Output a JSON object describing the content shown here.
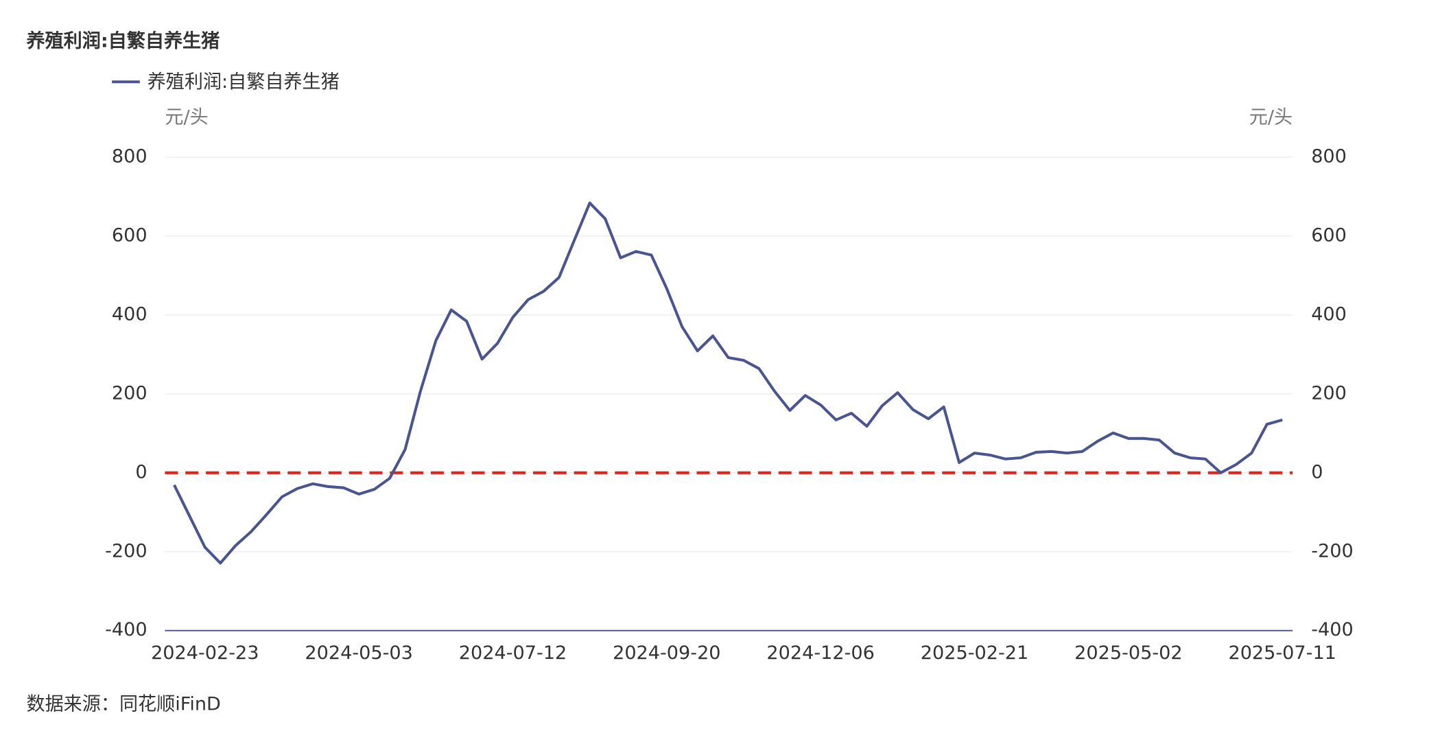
{
  "chart_data": {
    "type": "line",
    "title": "养殖利润:自繁自养生猪",
    "y_label": "元/头",
    "y2_label": "元/头",
    "source": "数据来源：同花顺iFinD",
    "categories": [
      null,
      null,
      "2024-02-23",
      null,
      null,
      null,
      null,
      null,
      null,
      null,
      null,
      null,
      "2024-05-03",
      null,
      null,
      null,
      null,
      null,
      null,
      null,
      null,
      null,
      "2024-07-12",
      null,
      null,
      null,
      null,
      null,
      null,
      null,
      null,
      null,
      "2024-09-20",
      null,
      null,
      null,
      null,
      null,
      null,
      null,
      null,
      null,
      "2024-12-06",
      null,
      null,
      null,
      null,
      null,
      null,
      null,
      null,
      null,
      "2025-02-21",
      null,
      null,
      null,
      null,
      null,
      null,
      null,
      null,
      null,
      "2025-05-02",
      null,
      null,
      null,
      null,
      null,
      null,
      null,
      null,
      null,
      "2025-07-11"
    ],
    "series": [
      {
        "name": "养殖利润:自繁自养生猪",
        "color": "#4a5590",
        "values": [
          -31,
          -110,
          -189,
          -229,
          -184,
          -149,
          -106,
          -61,
          -40,
          -28,
          -35,
          -38,
          -54,
          -42,
          -14,
          59,
          207,
          335,
          413,
          384,
          288,
          328,
          394,
          439,
          460,
          495,
          590,
          684,
          644,
          545,
          561,
          552,
          467,
          370,
          309,
          347,
          292,
          285,
          264,
          207,
          158,
          196,
          172,
          134,
          151,
          118,
          170,
          203,
          160,
          137,
          167,
          26,
          50,
          45,
          35,
          38,
          52,
          54,
          50,
          54,
          80,
          101,
          87,
          87,
          83,
          50,
          38,
          35,
          0,
          21,
          50,
          123,
          134
        ]
      }
    ],
    "ylim": [
      -400,
      800
    ],
    "yticks": [
      -400,
      -200,
      0,
      200,
      400,
      600,
      800
    ],
    "y2lim": [
      -400,
      800
    ],
    "y2ticks": [
      -400,
      -200,
      0,
      200,
      400,
      600,
      800
    ],
    "grid": true,
    "legend": "top-left",
    "reference_line": {
      "value": 0,
      "color": "#e1251b"
    }
  }
}
